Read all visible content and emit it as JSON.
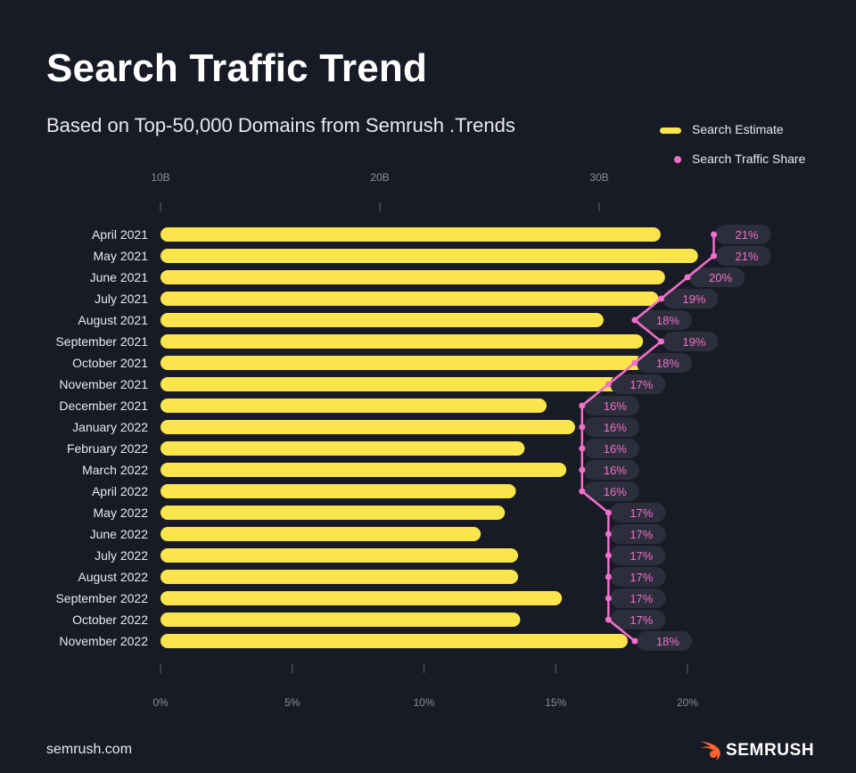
{
  "header": {
    "title": "Search Traffic Trend",
    "subtitle": "Based on Top-50,000 Domains from Semrush .Trends"
  },
  "legend": [
    {
      "label": "Search Estimate",
      "color": "#fbe54c"
    },
    {
      "label": "Search Traffic Share",
      "color": "#f36fcb"
    }
  ],
  "footer": {
    "source": "semrush.com",
    "brand": "SEMRUSH",
    "brand_color": "#ff642d"
  },
  "chart_data": {
    "type": "bar",
    "categories": [
      "April 2021",
      "May 2021",
      "June 2021",
      "July 2021",
      "August 2021",
      "September 2021",
      "October 2021",
      "November 2021",
      "December 2021",
      "January 2022",
      "February 2022",
      "March 2022",
      "April 2022",
      "May 2022",
      "June 2022",
      "July 2022",
      "August 2022",
      "September 2022",
      "October 2022",
      "November 2022"
    ],
    "series": [
      {
        "name": "Search Estimate",
        "color": "#fbe54c",
        "axis": "top",
        "values": [
          32.8,
          34.5,
          33.0,
          32.7,
          30.2,
          32.0,
          32.0,
          31.0,
          27.6,
          28.9,
          26.6,
          28.5,
          26.2,
          25.7,
          24.6,
          26.3,
          26.3,
          28.3,
          26.4,
          31.3
        ]
      },
      {
        "name": "Search Traffic Share",
        "color": "#f36fcb",
        "type": "line",
        "axis": "bottom",
        "values": [
          21,
          21,
          20,
          19,
          18,
          19,
          18,
          17,
          16,
          16,
          16,
          16,
          16,
          17,
          17,
          17,
          17,
          17,
          17,
          18
        ],
        "labels": [
          "21%",
          "21%",
          "20%",
          "19%",
          "18%",
          "19%",
          "18%",
          "17%",
          "16%",
          "16%",
          "16%",
          "16%",
          "16%",
          "17%",
          "17%",
          "17%",
          "17%",
          "17%",
          "17%",
          "18%"
        ]
      }
    ],
    "top_axis": {
      "min": 10,
      "max": 40,
      "ticks": [
        10,
        20,
        30
      ],
      "tick_labels": [
        "10B",
        "20B",
        "30B"
      ]
    },
    "bottom_axis": {
      "min": 0,
      "max": 20,
      "ticks": [
        0,
        5,
        10,
        15,
        20
      ],
      "tick_labels": [
        "0%",
        "5%",
        "10%",
        "15%",
        "20%"
      ]
    },
    "legend_position": "top-right",
    "grid": false
  }
}
